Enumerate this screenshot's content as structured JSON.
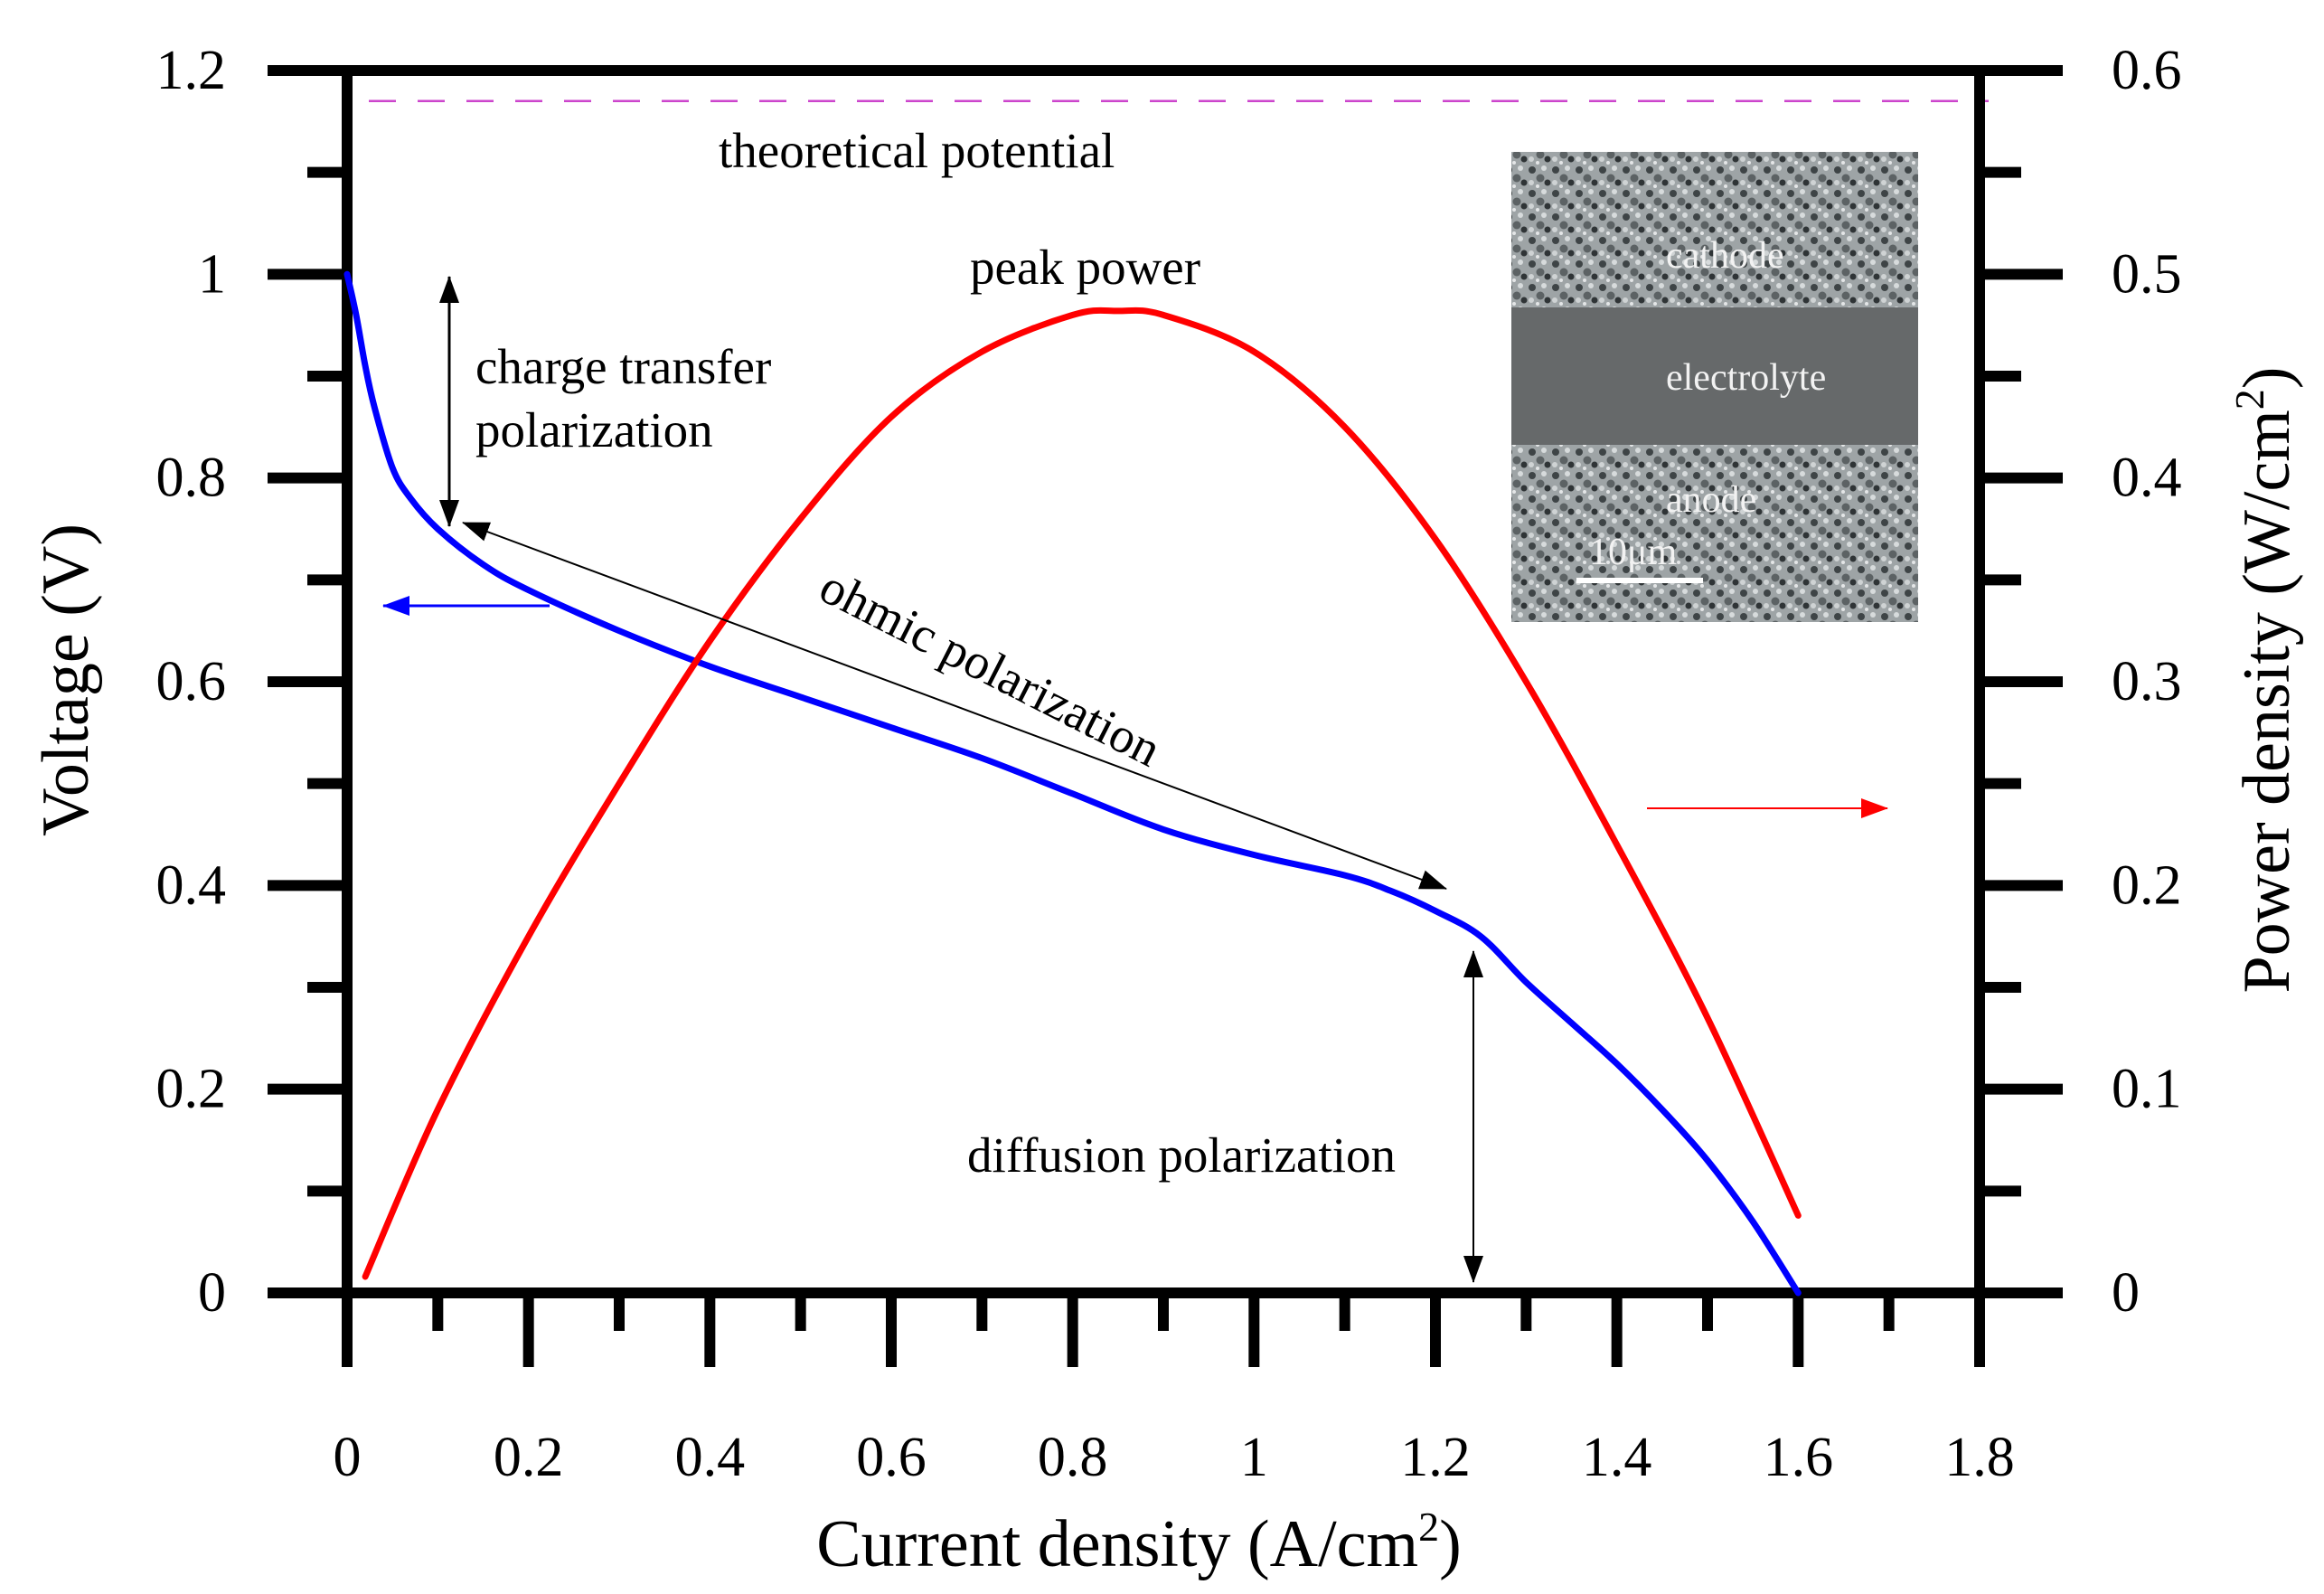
{
  "chart_data": {
    "type": "line",
    "title": "",
    "xlabel": "Current density (A/cm",
    "xlabel_sup": "2",
    "xlabel_close": ")",
    "ylabel": "Voltage (V)",
    "y2label": "Power density (W/cm",
    "y2label_sup": "2",
    "y2label_close": ")",
    "xlim": [
      0,
      1.8
    ],
    "ylim": [
      0,
      1.2
    ],
    "y2lim": [
      0,
      0.6
    ],
    "xticks": [
      0,
      0.2,
      0.4,
      0.6,
      0.8,
      1.0,
      1.2,
      1.4,
      1.6,
      1.8
    ],
    "xtick_labels": [
      "0",
      "0.2",
      "0.4",
      "0.6",
      "0.8",
      "1",
      "1.2",
      "1.4",
      "1.6",
      "1.8"
    ],
    "yticks": [
      0,
      0.2,
      0.4,
      0.6,
      0.8,
      1.0,
      1.2
    ],
    "ytick_labels": [
      "0",
      "0.2",
      "0.4",
      "0.6",
      "0.8",
      "1",
      "1.2"
    ],
    "y2ticks": [
      0,
      0.1,
      0.2,
      0.3,
      0.4,
      0.5,
      0.6
    ],
    "y2tick_labels": [
      "0",
      "0.1",
      "0.2",
      "0.3",
      "0.4",
      "0.5",
      "0.6"
    ],
    "grid": false,
    "theoretical_potential": 1.17,
    "series": [
      {
        "name": "Voltage",
        "axis": "left",
        "color": "#0000ff",
        "x": [
          0,
          0.01,
          0.02,
          0.03,
          0.05,
          0.07,
          0.1,
          0.15,
          0.2,
          0.3,
          0.4,
          0.5,
          0.6,
          0.7,
          0.8,
          0.9,
          1.0,
          1.1,
          1.15,
          1.2,
          1.25,
          1.3,
          1.35,
          1.4,
          1.45,
          1.5,
          1.55,
          1.6
        ],
        "values": [
          1.0,
          0.96,
          0.91,
          0.87,
          0.81,
          0.78,
          0.75,
          0.715,
          0.69,
          0.65,
          0.615,
          0.585,
          0.555,
          0.525,
          0.49,
          0.455,
          0.43,
          0.41,
          0.395,
          0.375,
          0.35,
          0.305,
          0.265,
          0.225,
          0.18,
          0.13,
          0.07,
          0.0
        ]
      },
      {
        "name": "Power density",
        "axis": "right",
        "color": "#ff0000",
        "x": [
          0.02,
          0.1,
          0.2,
          0.3,
          0.4,
          0.5,
          0.6,
          0.7,
          0.8,
          0.85,
          0.9,
          1.0,
          1.1,
          1.2,
          1.3,
          1.4,
          1.5,
          1.6
        ],
        "values": [
          0.008,
          0.09,
          0.175,
          0.25,
          0.32,
          0.38,
          0.43,
          0.462,
          0.48,
          0.482,
          0.48,
          0.462,
          0.425,
          0.37,
          0.3,
          0.22,
          0.135,
          0.038
        ]
      }
    ],
    "annotations": {
      "theoretical": "theoretical potential",
      "peak": "peak power",
      "charge_1": "charge transfer",
      "charge_2": "polarization",
      "ohmic": "ohmic polarization",
      "diffusion": "diffusion polarization"
    },
    "inset": {
      "cathode": "cathode",
      "electrolyte": "electrolyte",
      "anode": "anode",
      "scale": "10μm"
    },
    "colors": {
      "voltage": "#0000ff",
      "power": "#ff0000",
      "theoretical": "#cc44cc",
      "axis": "#000000"
    }
  }
}
